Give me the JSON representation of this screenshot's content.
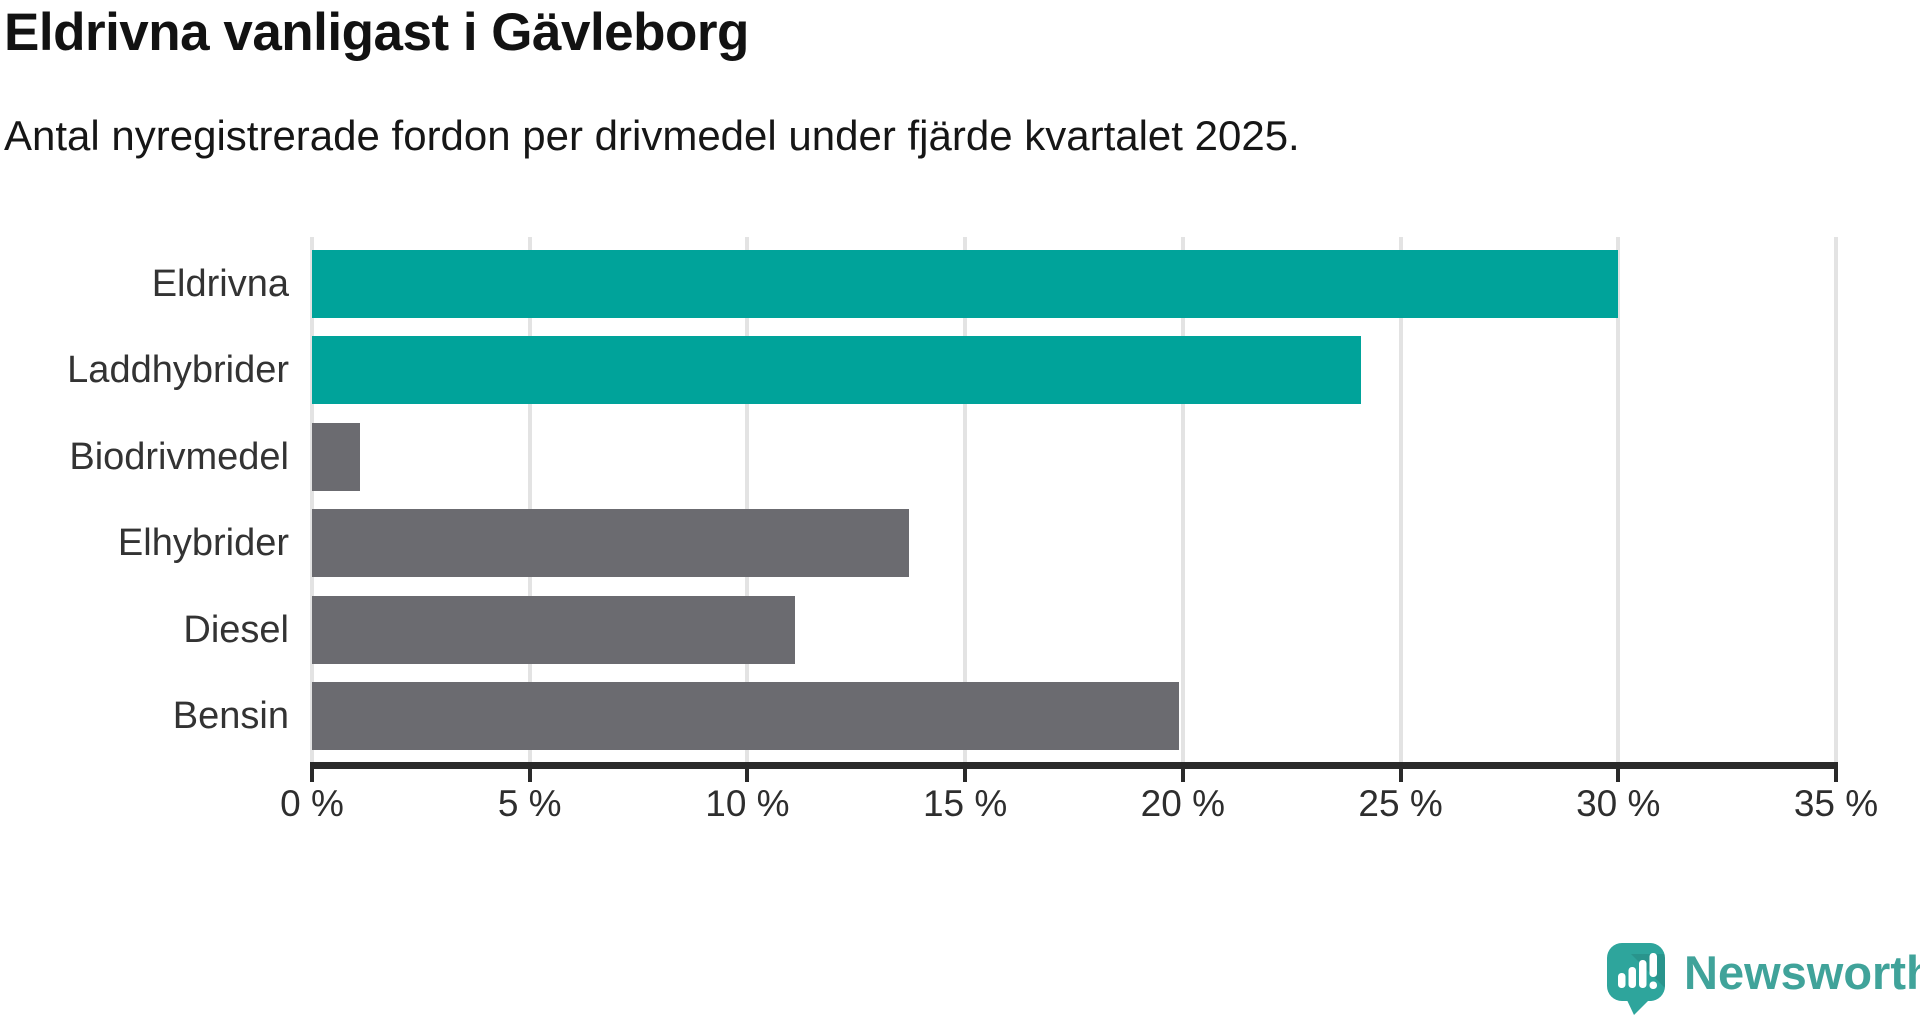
{
  "header": {
    "title": "Eldrivna vanligast i Gävleborg",
    "subtitle": "Antal nyregistrerade fordon per drivmedel under fjärde kvartalet 2025."
  },
  "chart_data": {
    "type": "bar",
    "orientation": "horizontal",
    "title": "Eldrivna vanligast i Gävleborg",
    "subtitle": "Antal nyregistrerade fordon per drivmedel under fjärde kvartalet 2025.",
    "categories": [
      "Eldrivna",
      "Laddhybrider",
      "Biodrivmedel",
      "Elhybrider",
      "Diesel",
      "Bensin"
    ],
    "values": [
      30.0,
      24.1,
      1.1,
      13.7,
      11.1,
      19.9
    ],
    "unit": "%",
    "xlim": [
      0,
      35
    ],
    "x_ticks": [
      0,
      5,
      10,
      15,
      20,
      25,
      30,
      35
    ],
    "x_tick_labels": [
      "0 %",
      "5 %",
      "10 %",
      "15 %",
      "20 %",
      "25 %",
      "30 %",
      "35 %"
    ],
    "grid": true,
    "legend": "none",
    "highlighted_categories": [
      "Eldrivna",
      "Laddhybrider"
    ],
    "colors": {
      "highlight": "#00a39a",
      "default": "#6b6b70",
      "gridline": "#e3e3e3",
      "axis": "#2a2a2a"
    }
  },
  "footer": {
    "brand": "Newsworthy",
    "brand_color": "#40a39a",
    "icon": "newsworthy-speech-bubble-bar-chart-icon"
  }
}
